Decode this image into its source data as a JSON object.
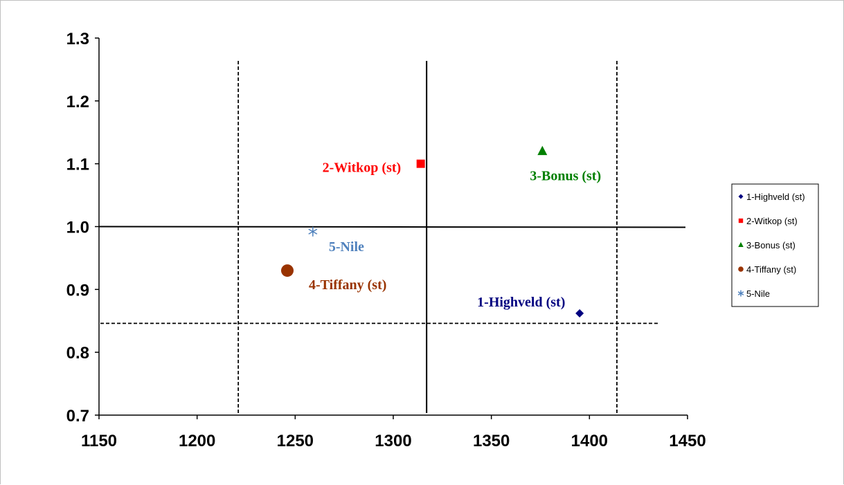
{
  "chart_data": {
    "type": "scatter",
    "title": "",
    "xlabel": "",
    "ylabel": "",
    "xlim": [
      1150,
      1450
    ],
    "ylim": [
      0.7,
      1.3
    ],
    "x_ticks": [
      "1150",
      "1200",
      "1250",
      "1300",
      "1350",
      "1400",
      "1450"
    ],
    "y_ticks": [
      "0.7",
      "0.8",
      "0.9",
      "1.0",
      "1.1",
      "1.2",
      "1.3"
    ],
    "grid": false,
    "legend_position": "right",
    "reference_lines": {
      "solid_vertical_x": 1317,
      "dashed_vertical_x": [
        1221,
        1414
      ],
      "solid_horizontal_y": 1.0,
      "dashed_horizontal_y": 0.846
    },
    "series": [
      {
        "name": "1-Highveld (st)",
        "label": "1-Highveld  (st)",
        "x": 1395,
        "y": 0.862,
        "marker": "diamond",
        "color": "#000080"
      },
      {
        "name": "2-Witkop (st)",
        "label": "2-Witkop  (st)",
        "x": 1314,
        "y": 1.1,
        "marker": "square",
        "color": "#ff0000"
      },
      {
        "name": "3-Bonus (st)",
        "label": "3-Bonus  (st)",
        "x": 1376,
        "y": 1.12,
        "marker": "triangle",
        "color": "#008000"
      },
      {
        "name": "4-Tiffany (st)",
        "label": "4-Tiffany  (st)",
        "x": 1246,
        "y": 0.93,
        "marker": "circle",
        "color": "#993300"
      },
      {
        "name": "5-Nile",
        "label": "5-Nile",
        "x": 1259,
        "y": 0.992,
        "marker": "asterisk",
        "color": "#4f81bd"
      }
    ]
  }
}
